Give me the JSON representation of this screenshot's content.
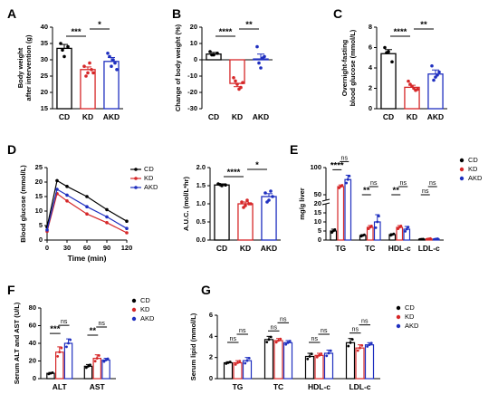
{
  "colors": {
    "CD": "#000000",
    "KD": "#d62728",
    "AKD": "#1f2fbf"
  },
  "chart_data": [
    {
      "id": "A",
      "label": "A",
      "type": "bar",
      "categories": [
        "CD",
        "KD",
        "AKD"
      ],
      "values": [
        33.5,
        27.0,
        29.5
      ],
      "errors": [
        1.2,
        0.8,
        1.2
      ],
      "points": [
        [
          35,
          31,
          34,
          33
        ],
        [
          28,
          26,
          27,
          25,
          29,
          26
        ],
        [
          32,
          28,
          29,
          31,
          30,
          27
        ]
      ],
      "ylabel": [
        "Body weight",
        "after intervention (g)"
      ],
      "ylim": [
        15,
        40
      ],
      "yticks": [
        15,
        20,
        25,
        30,
        35,
        40
      ],
      "sig": [
        {
          "a": 0,
          "b": 1,
          "text": "***"
        },
        {
          "a": 1,
          "b": 2,
          "text": "*"
        }
      ]
    },
    {
      "id": "B",
      "label": "B",
      "type": "bar",
      "categories": [
        "CD",
        "KD",
        "AKD"
      ],
      "values": [
        3.5,
        -14.5,
        0.5
      ],
      "errors": [
        1.0,
        2.0,
        3.0
      ],
      "points": [
        [
          5,
          3,
          4,
          3
        ],
        [
          -11,
          -15,
          -17,
          -13,
          -18,
          -14
        ],
        [
          8,
          -5,
          2,
          -2,
          1
        ]
      ],
      "ylabel": [
        "Change of body weight (%)"
      ],
      "ylim": [
        -30,
        20
      ],
      "yticks": [
        -30,
        -20,
        -10,
        0,
        10,
        20
      ],
      "sig": [
        {
          "a": 0,
          "b": 1,
          "text": "****"
        },
        {
          "a": 1,
          "b": 2,
          "text": "**"
        }
      ]
    },
    {
      "id": "C",
      "label": "C",
      "type": "bar",
      "categories": [
        "CD",
        "KD",
        "AKD"
      ],
      "values": [
        5.4,
        2.1,
        3.4
      ],
      "errors": [
        0.4,
        0.2,
        0.4
      ],
      "points": [
        [
          6.0,
          5.6,
          4.6,
          5.5
        ],
        [
          2.7,
          2.2,
          1.8,
          2.4,
          2.0,
          1.9
        ],
        [
          4.2,
          3.1,
          3.6,
          2.8,
          3.3
        ]
      ],
      "ylabel": [
        "Overnight-fasting",
        "blood glucose (mmol/L)"
      ],
      "ylim": [
        0,
        8
      ],
      "yticks": [
        0,
        2,
        4,
        6,
        8
      ],
      "sig": [
        {
          "a": 0,
          "b": 1,
          "text": "****"
        },
        {
          "a": 1,
          "b": 2,
          "text": "**"
        }
      ]
    },
    {
      "id": "D",
      "label": "D",
      "type": "line",
      "x": [
        0,
        15,
        30,
        60,
        90,
        120
      ],
      "series": [
        {
          "name": "CD",
          "values": [
            4.5,
            20.5,
            18.5,
            15.0,
            10.5,
            6.5
          ]
        },
        {
          "name": "KD",
          "values": [
            3.0,
            16.0,
            13.5,
            9.0,
            6.0,
            2.5
          ]
        },
        {
          "name": "AKD",
          "values": [
            3.5,
            17.5,
            15.5,
            11.5,
            8.0,
            4.0
          ]
        }
      ],
      "xlabel": "Time (min)",
      "ylabel": [
        "Blood glucose (mmol/L)"
      ],
      "xlim": [
        0,
        120
      ],
      "xticks": [
        0,
        30,
        60,
        90,
        120
      ],
      "ylim": [
        0,
        25
      ],
      "yticks": [
        0,
        5,
        10,
        15,
        20,
        25
      ],
      "legend": [
        "CD",
        "KD",
        "AKD"
      ]
    },
    {
      "id": "D2",
      "label": "",
      "type": "bar",
      "categories": [
        "CD",
        "KD",
        "AKD"
      ],
      "values": [
        1.52,
        1.0,
        1.2
      ],
      "errors": [
        0.03,
        0.05,
        0.08
      ],
      "points": [
        [
          1.55,
          1.5,
          1.52,
          1.53
        ],
        [
          1.05,
          0.95,
          1.0,
          0.9,
          1.1,
          1.0
        ],
        [
          1.3,
          1.1,
          1.2,
          1.05,
          1.35
        ]
      ],
      "ylabel": [
        "A.U.C. (mol/L*hr)"
      ],
      "ylim": [
        0,
        2.0
      ],
      "yticks": [
        "0.0",
        "0.5",
        "1.0",
        "1.5",
        "2.0"
      ],
      "sig": [
        {
          "a": 0,
          "b": 1,
          "text": "****"
        },
        {
          "a": 1,
          "b": 2,
          "text": "*"
        }
      ]
    },
    {
      "id": "E",
      "label": "E",
      "type": "grouped_bar",
      "categories": [
        "TG",
        "TC",
        "HDL-c",
        "LDL-c"
      ],
      "series": [
        {
          "name": "CD",
          "values": [
            5.0,
            2.5,
            3.0,
            0.5
          ],
          "errors": [
            1.0,
            0.5,
            0.5,
            0.1
          ]
        },
        {
          "name": "KD",
          "values": [
            65,
            7.0,
            7.0,
            0.7
          ],
          "errors": [
            3.0,
            1.0,
            1.0,
            0.2
          ]
        },
        {
          "name": "AKD",
          "values": [
            78,
            10.0,
            6.0,
            0.6
          ],
          "errors": [
            8.0,
            4.0,
            1.5,
            0.2
          ]
        }
      ],
      "ylabel": [
        "mg/g liver"
      ],
      "ylim": [
        0,
        100
      ],
      "yticks": [
        "0",
        "5",
        "10",
        "15",
        "20",
        "50",
        "100"
      ],
      "axis_break": [
        20,
        40
      ],
      "sig": [
        {
          "g": 0,
          "a": 0,
          "b": 1,
          "text": "****"
        },
        {
          "g": 0,
          "a": 1,
          "b": 2,
          "text": "ns"
        },
        {
          "g": 1,
          "a": 0,
          "b": 1,
          "text": "**"
        },
        {
          "g": 1,
          "a": 1,
          "b": 2,
          "text": "ns"
        },
        {
          "g": 2,
          "a": 0,
          "b": 1,
          "text": "**"
        },
        {
          "g": 2,
          "a": 1,
          "b": 2,
          "text": "ns"
        },
        {
          "g": 3,
          "a": 0,
          "b": 1,
          "text": "ns"
        },
        {
          "g": 3,
          "a": 1,
          "b": 2,
          "text": "ns"
        }
      ],
      "legend": [
        "CD",
        "KD",
        "AKD"
      ]
    },
    {
      "id": "F",
      "label": "F",
      "type": "grouped_bar",
      "categories": [
        "ALT",
        "AST"
      ],
      "series": [
        {
          "name": "CD",
          "values": [
            6,
            14
          ],
          "errors": [
            1.0,
            2.0
          ]
        },
        {
          "name": "KD",
          "values": [
            30,
            23
          ],
          "errors": [
            6.0,
            4.0
          ]
        },
        {
          "name": "AKD",
          "values": [
            40,
            21
          ],
          "errors": [
            5.0,
            2.0
          ]
        }
      ],
      "ylabel": [
        "Serum ALT and AST (U/L)"
      ],
      "ylim": [
        0,
        80
      ],
      "yticks": [
        0,
        20,
        40,
        60,
        80
      ],
      "sig": [
        {
          "g": 0,
          "a": 0,
          "b": 1,
          "text": "***"
        },
        {
          "g": 0,
          "a": 1,
          "b": 2,
          "text": "ns"
        },
        {
          "g": 1,
          "a": 0,
          "b": 1,
          "text": "**"
        },
        {
          "g": 1,
          "a": 1,
          "b": 2,
          "text": "ns"
        }
      ],
      "legend": [
        "CD",
        "KD",
        "AKD"
      ]
    },
    {
      "id": "G",
      "label": "G",
      "type": "grouped_bar",
      "categories": [
        "TG",
        "TC",
        "HDL-c",
        "LDL-c"
      ],
      "series": [
        {
          "name": "CD",
          "values": [
            1.5,
            3.7,
            2.1,
            3.4
          ],
          "errors": [
            0.1,
            0.3,
            0.3,
            0.4
          ]
        },
        {
          "name": "KD",
          "values": [
            1.5,
            3.6,
            2.2,
            2.9
          ],
          "errors": [
            0.2,
            0.2,
            0.2,
            0.3
          ]
        },
        {
          "name": "AKD",
          "values": [
            1.7,
            3.4,
            2.4,
            3.2
          ],
          "errors": [
            0.3,
            0.2,
            0.3,
            0.2
          ]
        }
      ],
      "ylabel": [
        "Serum lipid (mmol/L)"
      ],
      "ylim": [
        0,
        6
      ],
      "yticks": [
        0,
        2,
        4,
        6
      ],
      "sig": [
        {
          "g": 0,
          "a": 0,
          "b": 1,
          "text": "ns"
        },
        {
          "g": 0,
          "a": 1,
          "b": 2,
          "text": "ns"
        },
        {
          "g": 1,
          "a": 0,
          "b": 1,
          "text": "ns"
        },
        {
          "g": 1,
          "a": 1,
          "b": 2,
          "text": "ns"
        },
        {
          "g": 2,
          "a": 0,
          "b": 1,
          "text": "ns"
        },
        {
          "g": 2,
          "a": 1,
          "b": 2,
          "text": "ns"
        },
        {
          "g": 3,
          "a": 0,
          "b": 1,
          "text": "ns"
        },
        {
          "g": 3,
          "a": 1,
          "b": 2,
          "text": "ns"
        }
      ],
      "legend": [
        "CD",
        "KD",
        "AKD"
      ]
    }
  ]
}
